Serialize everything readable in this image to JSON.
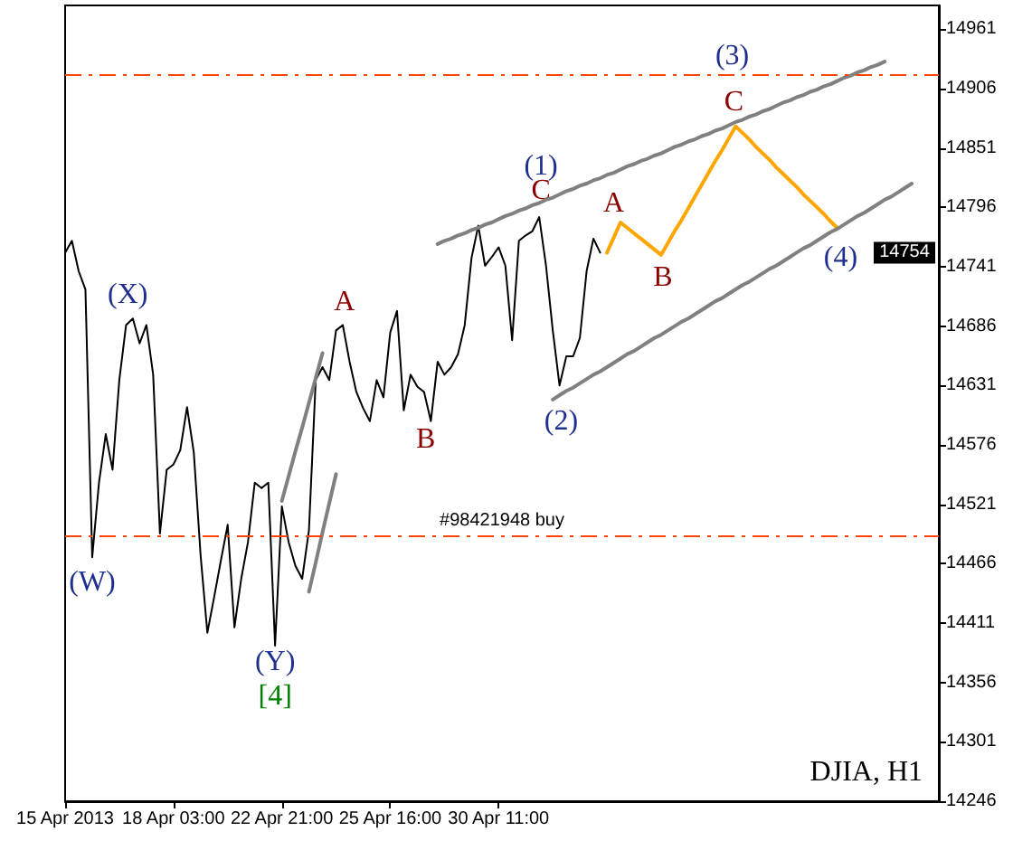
{
  "chart_data": {
    "type": "line",
    "grid": false,
    "marker": "none",
    "categories": [
      "15 Apr 2013",
      null,
      null,
      null,
      null,
      null,
      null,
      null,
      null,
      null,
      null,
      null,
      null,
      null,
      null,
      null,
      "18 Apr 03:00",
      null,
      null,
      null,
      null,
      null,
      null,
      null,
      null,
      null,
      null,
      null,
      null,
      null,
      null,
      null,
      "22 Apr 21:00",
      null,
      null,
      null,
      null,
      null,
      null,
      null,
      null,
      null,
      null,
      null,
      null,
      null,
      null,
      null,
      "25 Apr 16:00",
      null,
      null,
      null,
      null,
      null,
      null,
      null,
      null,
      null,
      null,
      null,
      null,
      null,
      null,
      null,
      "30 Apr 11:00",
      null,
      null,
      null,
      null,
      null,
      null,
      null,
      null,
      null,
      null,
      null,
      null,
      null,
      null,
      null,
      null,
      null,
      null,
      null,
      null,
      null,
      null,
      null,
      null,
      null,
      null,
      null,
      null,
      null,
      null,
      null,
      null,
      null,
      null,
      null,
      null,
      null,
      null,
      null,
      null,
      null,
      null,
      null,
      null,
      null,
      null,
      null,
      null,
      null,
      null,
      null,
      null,
      null,
      null,
      null,
      null,
      null,
      null,
      null,
      null,
      null,
      null,
      null,
      null,
      null
    ],
    "ylim": [
      14246,
      14983
    ],
    "yticks": [
      14246,
      14301,
      14356,
      14411,
      14466,
      14521,
      14576,
      14631,
      14686,
      14741,
      14796,
      14851,
      14906,
      14961
    ],
    "series": [
      {
        "color": "#000000",
        "values": [
          14754,
          14765,
          14737,
          14720,
          14472,
          14541,
          14586,
          14553,
          14636,
          14687,
          14693,
          14670,
          14687,
          14641,
          14494,
          14553,
          14558,
          14571,
          14611,
          14569,
          14474,
          14402,
          14435,
          14469,
          14502,
          14407,
          14452,
          14486,
          14541,
          14536,
          14541,
          14390,
          14519,
          14486,
          14464,
          14452,
          14497,
          14636,
          14648,
          14636,
          14682,
          14687,
          14653,
          14625,
          14610,
          14598,
          14636,
          14620,
          14680,
          14700,
          14608,
          14641,
          14630,
          14625,
          14598,
          14653,
          14641,
          14648,
          14660,
          14687,
          14749,
          14779,
          14742,
          14750,
          14759,
          14742,
          14673,
          14765,
          14770,
          14774,
          14787,
          14742,
          14682,
          14631,
          14658,
          14658,
          14675,
          14737,
          14767,
          14754,
          null,
          null,
          null,
          null,
          null,
          null,
          null,
          null,
          null,
          null,
          null,
          null,
          null,
          null,
          null,
          null,
          null,
          null,
          null,
          null,
          null,
          null,
          null,
          null,
          null,
          null,
          null,
          null,
          null,
          null,
          null,
          null,
          null,
          null,
          null,
          null,
          null,
          null,
          null,
          null,
          null,
          null,
          null,
          null,
          null,
          null,
          null,
          null,
          null,
          null
        ]
      },
      {
        "color": "#ffa500",
        "values": [
          null,
          null,
          null,
          null,
          null,
          null,
          null,
          null,
          null,
          null,
          null,
          null,
          null,
          null,
          null,
          null,
          null,
          null,
          null,
          null,
          null,
          null,
          null,
          null,
          null,
          null,
          null,
          null,
          null,
          null,
          null,
          null,
          null,
          null,
          null,
          null,
          null,
          null,
          null,
          null,
          null,
          null,
          null,
          null,
          null,
          null,
          null,
          null,
          null,
          null,
          null,
          null,
          null,
          null,
          null,
          null,
          null,
          null,
          null,
          null,
          null,
          null,
          null,
          null,
          null,
          null,
          null,
          null,
          null,
          null,
          null,
          null,
          null,
          null,
          null,
          null,
          null,
          null,
          null,
          null,
          14754,
          14768,
          14782,
          14777,
          14772,
          14767,
          14762,
          14757,
          14752,
          14763,
          14774,
          14784,
          14795,
          14806,
          14817,
          14828,
          14839,
          14849,
          14860,
          14871,
          14865,
          14859,
          14852,
          14846,
          14840,
          14833,
          14827,
          14821,
          14815,
          14808,
          14802,
          14796,
          14790,
          14783,
          14777,
          null,
          null,
          null,
          null,
          null,
          null,
          null,
          null,
          null,
          null,
          null,
          null,
          null,
          null,
          null
        ]
      },
      {
        "color": "#808080",
        "values": [
          null,
          null,
          null,
          null,
          null,
          null,
          null,
          null,
          null,
          null,
          null,
          null,
          null,
          null,
          null,
          null,
          null,
          null,
          null,
          null,
          null,
          null,
          null,
          null,
          null,
          null,
          null,
          null,
          null,
          null,
          null,
          null,
          null,
          null,
          null,
          null,
          null,
          null,
          null,
          null,
          null,
          null,
          null,
          null,
          null,
          null,
          null,
          null,
          null,
          null,
          null,
          null,
          null,
          null,
          null,
          14762,
          14765,
          14767,
          14770,
          14772,
          14775,
          14777,
          14780,
          14782,
          14785,
          14788,
          14790,
          14793,
          14795,
          14798,
          14800,
          14803,
          14805,
          14808,
          14811,
          14813,
          14816,
          14818,
          14821,
          14823,
          14826,
          14828,
          14831,
          14834,
          14836,
          14839,
          14841,
          14844,
          14846,
          14849,
          14852,
          14854,
          14857,
          14859,
          14862,
          14864,
          14867,
          14869,
          14872,
          14875,
          14877,
          14880,
          14882,
          14885,
          14887,
          14890,
          14893,
          14895,
          14898,
          14900,
          14903,
          14905,
          14908,
          14910,
          14913,
          14916,
          14918,
          14921,
          14923,
          14926,
          14928,
          14931,
          null,
          null,
          null,
          null,
          null,
          null,
          null,
          null
        ]
      },
      {
        "color": "#808080",
        "values": [
          null,
          null,
          null,
          null,
          null,
          null,
          null,
          null,
          null,
          null,
          null,
          null,
          null,
          null,
          null,
          null,
          null,
          null,
          null,
          null,
          null,
          null,
          null,
          null,
          null,
          null,
          null,
          null,
          null,
          null,
          null,
          null,
          null,
          null,
          null,
          null,
          null,
          null,
          null,
          null,
          null,
          null,
          null,
          null,
          null,
          null,
          null,
          null,
          null,
          null,
          null,
          null,
          null,
          null,
          null,
          null,
          null,
          null,
          null,
          null,
          null,
          null,
          null,
          null,
          null,
          null,
          null,
          null,
          null,
          null,
          null,
          null,
          14618,
          14622,
          14626,
          14629,
          14633,
          14637,
          14641,
          14644,
          14648,
          14652,
          14656,
          14660,
          14663,
          14667,
          14671,
          14675,
          14678,
          14682,
          14686,
          14690,
          14693,
          14697,
          14701,
          14705,
          14709,
          14712,
          14716,
          14720,
          14724,
          14727,
          14731,
          14735,
          14739,
          14742,
          14746,
          14750,
          14754,
          14758,
          14761,
          14765,
          14769,
          14773,
          14776,
          14780,
          14784,
          14788,
          14791,
          14795,
          14799,
          14803,
          14806,
          14810,
          14814,
          14818,
          null,
          null,
          null,
          null
        ]
      },
      {
        "color": "#808080",
        "values": [
          null,
          null,
          null,
          null,
          null,
          null,
          null,
          null,
          null,
          null,
          null,
          null,
          null,
          null,
          null,
          null,
          null,
          null,
          null,
          null,
          null,
          null,
          null,
          null,
          null,
          null,
          null,
          null,
          null,
          null,
          null,
          null,
          14524,
          14547,
          14570,
          14592,
          14615,
          14638,
          14661,
          null,
          null,
          null,
          null,
          null,
          null,
          null,
          null,
          null,
          null,
          null,
          null,
          null,
          null,
          null,
          null,
          null,
          null,
          null,
          null,
          null,
          null,
          null,
          null,
          null,
          null,
          null,
          null,
          null,
          null,
          null,
          null,
          null,
          null,
          null,
          null,
          null,
          null,
          null,
          null,
          null,
          null,
          null,
          null,
          null,
          null,
          null,
          null,
          null,
          null,
          null,
          null,
          null,
          null,
          null,
          null,
          null,
          null,
          null,
          null,
          null,
          null,
          null,
          null,
          null,
          null,
          null,
          null,
          null,
          null,
          null,
          null,
          null,
          null,
          null,
          null,
          null,
          null,
          null,
          null,
          null,
          null,
          null,
          null,
          null,
          null,
          null,
          null,
          null,
          null,
          null
        ]
      },
      {
        "color": "#808080",
        "values": [
          null,
          null,
          null,
          null,
          null,
          null,
          null,
          null,
          null,
          null,
          null,
          null,
          null,
          null,
          null,
          null,
          null,
          null,
          null,
          null,
          null,
          null,
          null,
          null,
          null,
          null,
          null,
          null,
          null,
          null,
          null,
          null,
          null,
          null,
          null,
          null,
          14440,
          14467,
          14495,
          14522,
          14549,
          null,
          null,
          null,
          null,
          null,
          null,
          null,
          null,
          null,
          null,
          null,
          null,
          null,
          null,
          null,
          null,
          null,
          null,
          null,
          null,
          null,
          null,
          null,
          null,
          null,
          null,
          null,
          null,
          null,
          null,
          null,
          null,
          null,
          null,
          null,
          null,
          null,
          null,
          null,
          null,
          null,
          null,
          null,
          null,
          null,
          null,
          null,
          null,
          null,
          null,
          null,
          null,
          null,
          null,
          null,
          null,
          null,
          null,
          null,
          null,
          null,
          null,
          null,
          null,
          null,
          null,
          null,
          null,
          null,
          null,
          null,
          null,
          null,
          null,
          null,
          null,
          null,
          null,
          null,
          null,
          null,
          null,
          null,
          null,
          null,
          null,
          null,
          null,
          null
        ]
      }
    ],
    "ref_lines": [
      {
        "axis": "y",
        "value": 14492,
        "label": "#98421948 buy",
        "color": "#ff4500",
        "line_style": "dashed"
      },
      {
        "axis": "y",
        "value": 14919,
        "label": null,
        "color": "#ff4500",
        "line_style": "dashed"
      }
    ],
    "annotations": [
      "(X)",
      "(W)",
      "(Y)",
      "[4]",
      "A",
      "B",
      "(1)",
      "C",
      "(2)",
      "A",
      "B",
      "C",
      "(3)",
      "(4)",
      "14754",
      "DJIA, H1"
    ]
  }
}
